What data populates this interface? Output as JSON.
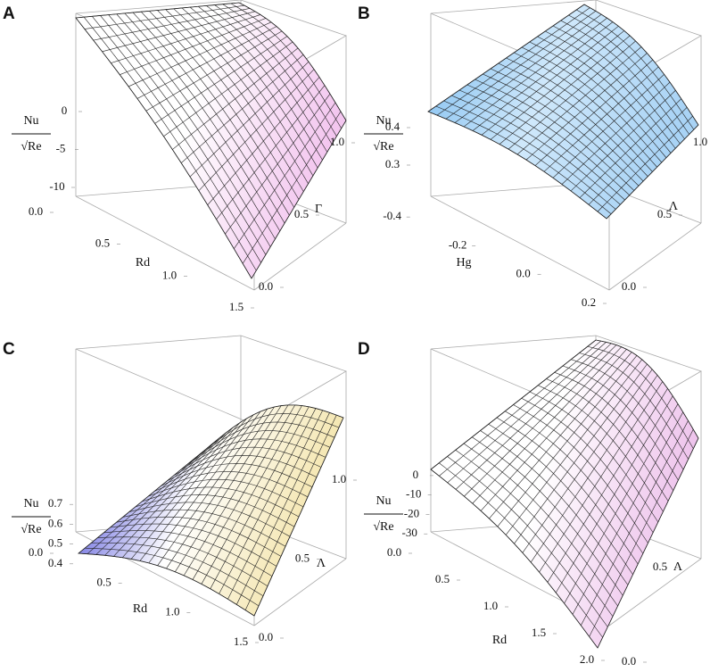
{
  "chart_data": [
    {
      "type": "surface",
      "label": "A",
      "zlabel": "Nu",
      "zlabel_den": "√Re",
      "xlabel": "Rd",
      "ylabel": "Γ",
      "xlim": [
        0,
        1.5
      ],
      "xticks": [
        {
          "value": 0,
          "label": "0.0"
        },
        0.5,
        {
          "value": 1,
          "label": "1.0"
        },
        1.5
      ],
      "ylim": [
        0,
        1
      ],
      "yticks": [
        {
          "value": 0,
          "label": "0.0"
        },
        0.5,
        {
          "value": 1,
          "label": "1.0"
        }
      ],
      "zlim": [
        -12,
        2
      ],
      "zticks": [
        0,
        -5,
        -10
      ],
      "color": "#f3c6ef"
    },
    {
      "type": "surface",
      "label": "B",
      "zlabel": "Nu",
      "zlabel_den": "√Re",
      "xlabel": "Hg",
      "ylabel": "Λ",
      "xlim": [
        -0.5,
        0.2
      ],
      "xticks": [
        -0.4,
        -0.2,
        {
          "value": 0,
          "label": "0.0"
        },
        0.2
      ],
      "ylim": [
        0,
        1
      ],
      "yticks": [
        {
          "value": 0,
          "label": "0.0"
        },
        0.5,
        {
          "value": 1,
          "label": "1.0"
        }
      ],
      "zlim": [
        0.2,
        0.45
      ],
      "zticks": [
        0.4,
        0.3
      ],
      "color": "#a9d3f5"
    },
    {
      "type": "surface",
      "label": "C",
      "zlabel": "Nu",
      "zlabel_den": "√Re",
      "xlabel": "Rd",
      "ylabel": "Λ",
      "xlim": [
        0,
        1.5
      ],
      "xticks": [
        {
          "value": 0,
          "label": "0.0"
        },
        0.5,
        {
          "value": 1,
          "label": "1.0"
        },
        1.5
      ],
      "ylim": [
        0,
        1
      ],
      "yticks": [
        {
          "value": 0,
          "label": "0.0"
        },
        0.5,
        {
          "value": 1,
          "label": "1.0"
        }
      ],
      "zlim": [
        0.3,
        0.8
      ],
      "zticks": [
        0.7,
        0.6,
        0.5,
        0.4
      ],
      "color": "#3b3bd6"
    },
    {
      "type": "surface",
      "label": "D",
      "zlabel": "Nu",
      "zlabel_den": "√Re",
      "xlabel": "Rd",
      "ylabel": "Λ",
      "xlim": [
        0,
        2
      ],
      "xticks": [
        {
          "value": 0,
          "label": "0.0"
        },
        0.5,
        {
          "value": 1,
          "label": "1.0"
        },
        1.5,
        {
          "value": 2,
          "label": "2.0"
        }
      ],
      "ylim": [
        0,
        1
      ],
      "yticks": [
        {
          "value": 0,
          "label": "0.0"
        },
        0.5
      ],
      "zlim": [
        -40,
        5
      ],
      "zticks": [
        0,
        -10,
        -20,
        -30
      ],
      "color": "#eec3ec"
    }
  ]
}
